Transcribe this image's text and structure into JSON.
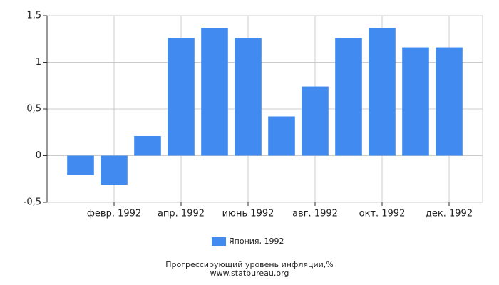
{
  "chart_data": {
    "type": "bar",
    "title": "Прогрессирующий уровень инфляции,%",
    "subtitle": "www.statbureau.org",
    "categories": [
      null,
      "февр. 1992",
      null,
      "апр. 1992",
      null,
      "июнь 1992",
      null,
      "авг. 1992",
      null,
      "окт. 1992",
      null,
      "дек. 1992"
    ],
    "series": [
      {
        "name": "Япония, 1992",
        "color": "#418bf0",
        "values": [
          -0.21,
          -0.31,
          0.21,
          1.26,
          1.37,
          1.26,
          0.42,
          0.74,
          1.26,
          1.37,
          1.16,
          1.16
        ]
      }
    ],
    "ylim": [
      -0.5,
      1.5
    ],
    "yticks": [
      {
        "value": -0.5,
        "label": "-0,5"
      },
      0,
      {
        "value": 0.5,
        "label": "0,5"
      },
      1,
      {
        "value": 1.5,
        "label": "1,5"
      }
    ],
    "grid": true,
    "legend": "bottom"
  }
}
